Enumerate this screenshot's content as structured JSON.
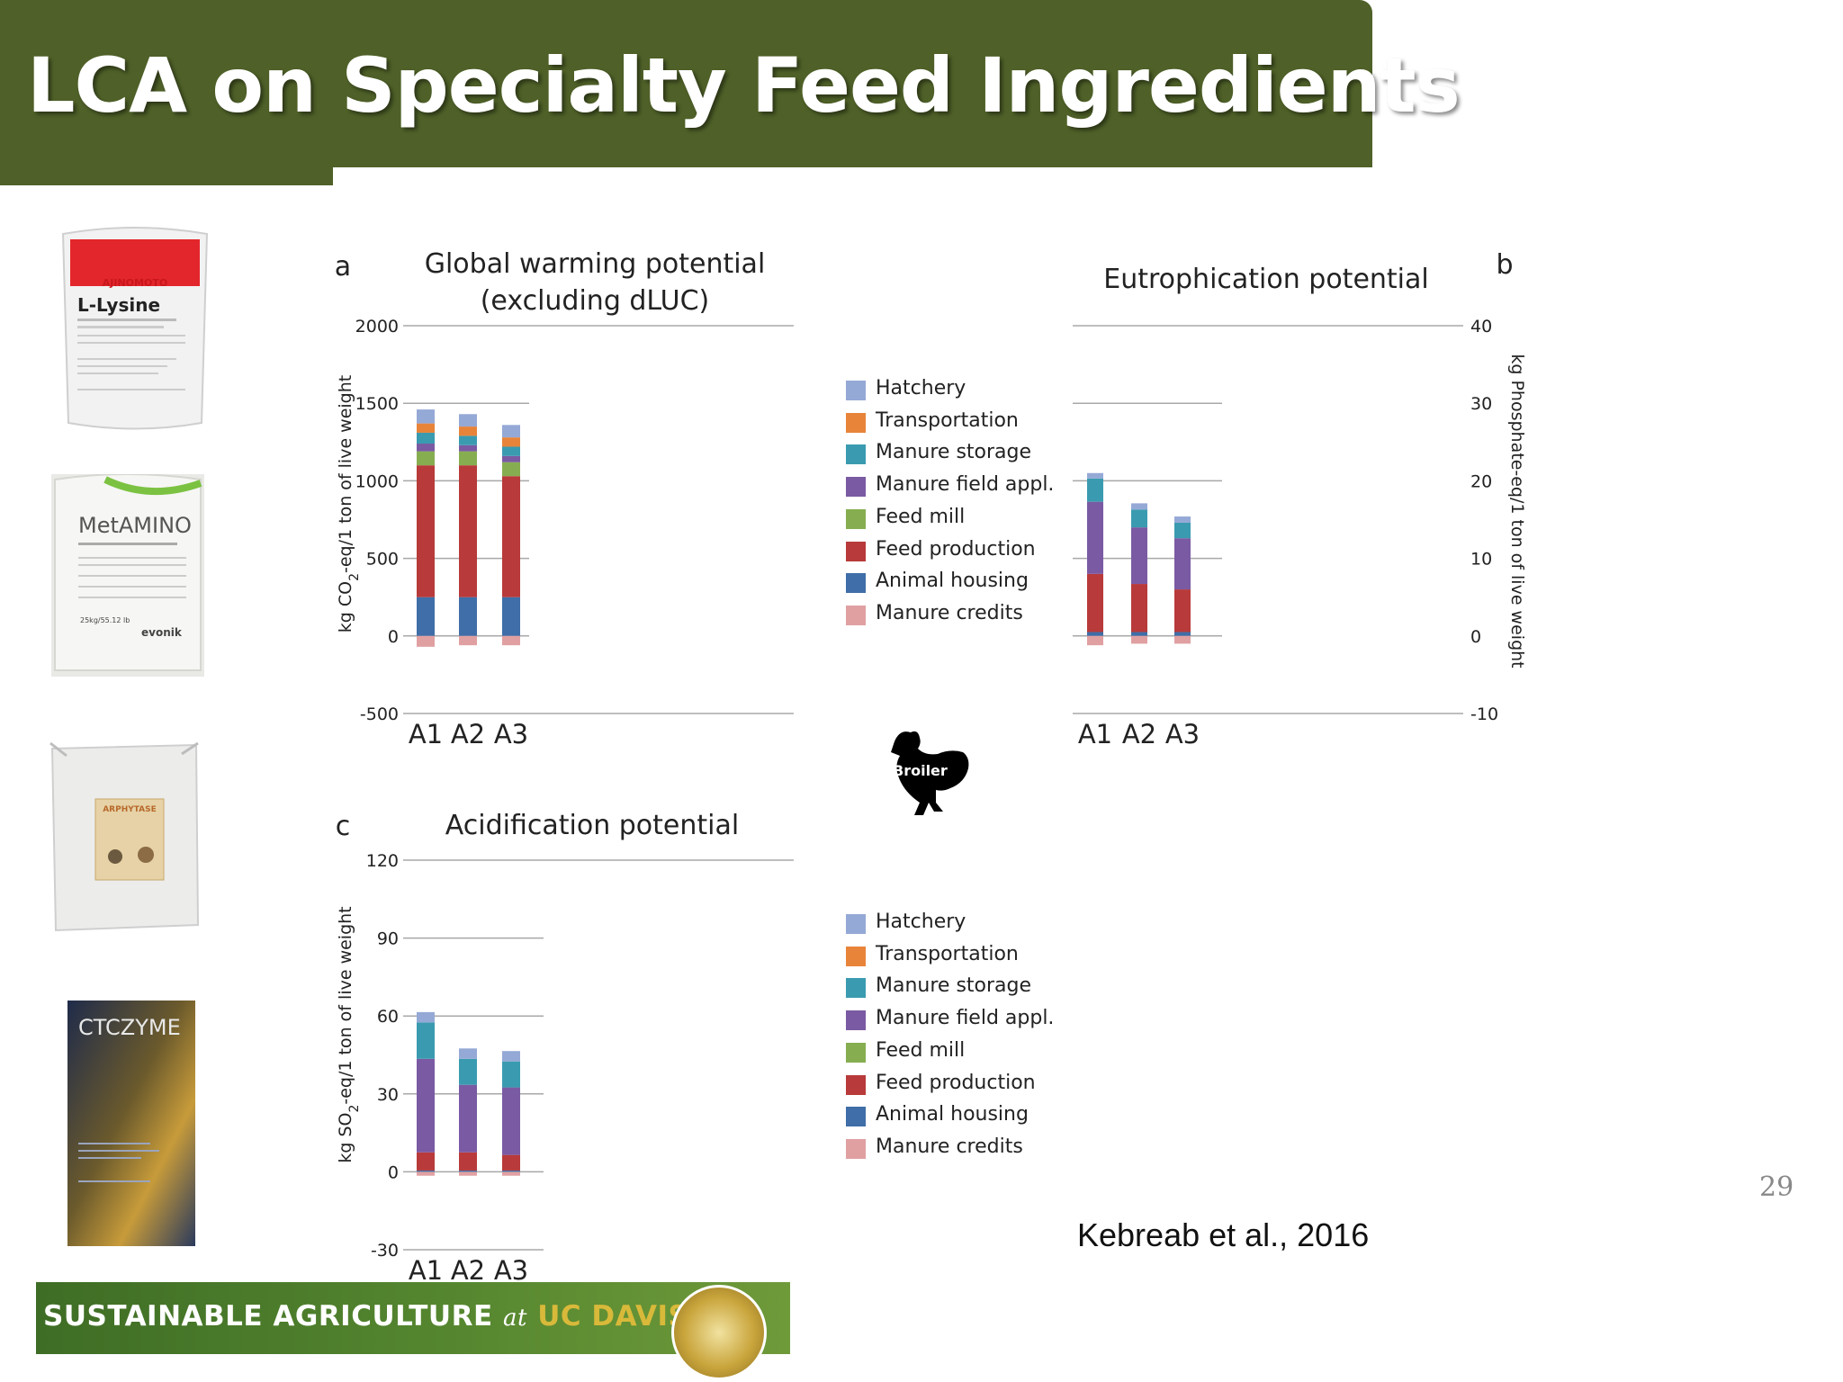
{
  "slide": {
    "title": "LCA on Specialty Feed Ingredients",
    "slide_number": "29",
    "citation": "Kebreab et al., 2016",
    "footer": {
      "part1": "SUSTAINABLE  AGRICULTURE",
      "part2": "at",
      "part3": "UC DAVIS"
    },
    "broiler_label": "Broiler"
  },
  "products": [
    {
      "name": "L-Lysine",
      "brand": "AJINOMOTO"
    },
    {
      "name": "MetAMINO",
      "brand": "evonik",
      "weight": "25kg/55.12 lb"
    },
    {
      "name": "ARPHYTASE"
    },
    {
      "name": "CTCZYME"
    }
  ],
  "legend": {
    "entries": [
      "Hatchery",
      "Transportation",
      "Manure storage",
      "Manure field appl.",
      "Feed mill",
      "Feed production",
      "Animal housing",
      "Manure credits"
    ]
  },
  "colors": {
    "Hatchery": "#95a9d6",
    "Transportation": "#e8843a",
    "Manure storage": "#3a9bb0",
    "Manure field appl.": "#7a5aa3",
    "Feed mill": "#86ae50",
    "Feed production": "#b83a3a",
    "Animal housing": "#3f6ea8",
    "Manure credits": "#e0a0a2"
  },
  "chart_data": [
    {
      "type": "bar",
      "panel_letter": "a",
      "title": "Global warming potential (excluding dLUC)",
      "ylabel": "kg CO2-eq/1 ton of live weight",
      "ylim": [
        -500,
        2000
      ],
      "yticks": [
        "2000",
        "1500",
        "1000",
        "500",
        "0",
        "-500"
      ],
      "categories": [
        "A1",
        "A2",
        "A3"
      ],
      "stacked": true,
      "series": [
        {
          "name": "Animal housing",
          "values": [
            250,
            250,
            250
          ]
        },
        {
          "name": "Feed production",
          "values": [
            850,
            850,
            780
          ]
        },
        {
          "name": "Feed mill",
          "values": [
            90,
            90,
            90
          ]
        },
        {
          "name": "Manure field appl.",
          "values": [
            50,
            40,
            40
          ]
        },
        {
          "name": "Manure storage",
          "values": [
            70,
            60,
            60
          ]
        },
        {
          "name": "Transportation",
          "values": [
            60,
            60,
            60
          ]
        },
        {
          "name": "Hatchery",
          "values": [
            90,
            80,
            80
          ]
        },
        {
          "name": "Manure credits",
          "values": [
            -70,
            -60,
            -60
          ]
        }
      ]
    },
    {
      "type": "bar",
      "panel_letter": "b",
      "title": "Eutrophication potential",
      "ylabel": "kg Phosphate-eq/1 ton of live weight",
      "ylim": [
        -10,
        40
      ],
      "yticks": [
        "40",
        "30",
        "20",
        "10",
        "0",
        "-10"
      ],
      "categories": [
        "A1",
        "A2",
        "A3"
      ],
      "stacked": true,
      "series": [
        {
          "name": "Animal housing",
          "values": [
            0.5,
            0.5,
            0.5
          ]
        },
        {
          "name": "Feed production",
          "values": [
            7.5,
            6.2,
            5.5
          ]
        },
        {
          "name": "Manure field appl.",
          "values": [
            9.3,
            7.3,
            6.6
          ]
        },
        {
          "name": "Manure storage",
          "values": [
            3.0,
            2.3,
            2.0
          ]
        },
        {
          "name": "Hatchery",
          "values": [
            0.7,
            0.8,
            0.8
          ]
        },
        {
          "name": "Manure credits",
          "values": [
            -1.2,
            -1.0,
            -1.0
          ]
        }
      ]
    },
    {
      "type": "bar",
      "panel_letter": "c",
      "title": "Acidification potential",
      "ylabel": "kg SO2-eq/1 ton of live weight",
      "ylim": [
        -30,
        120
      ],
      "yticks": [
        "120",
        "90",
        "60",
        "30",
        "0",
        "-30"
      ],
      "categories": [
        "A1",
        "A2",
        "A3"
      ],
      "stacked": true,
      "series": [
        {
          "name": "Animal housing",
          "values": [
            0.5,
            0.5,
            0.5
          ]
        },
        {
          "name": "Feed production",
          "values": [
            7,
            7,
            6
          ]
        },
        {
          "name": "Manure field appl.",
          "values": [
            36,
            26,
            26
          ]
        },
        {
          "name": "Manure storage",
          "values": [
            14,
            10,
            10
          ]
        },
        {
          "name": "Hatchery",
          "values": [
            4,
            4,
            4
          ]
        },
        {
          "name": "Manure credits",
          "values": [
            -1.5,
            -1.5,
            -1.5
          ]
        }
      ]
    }
  ]
}
